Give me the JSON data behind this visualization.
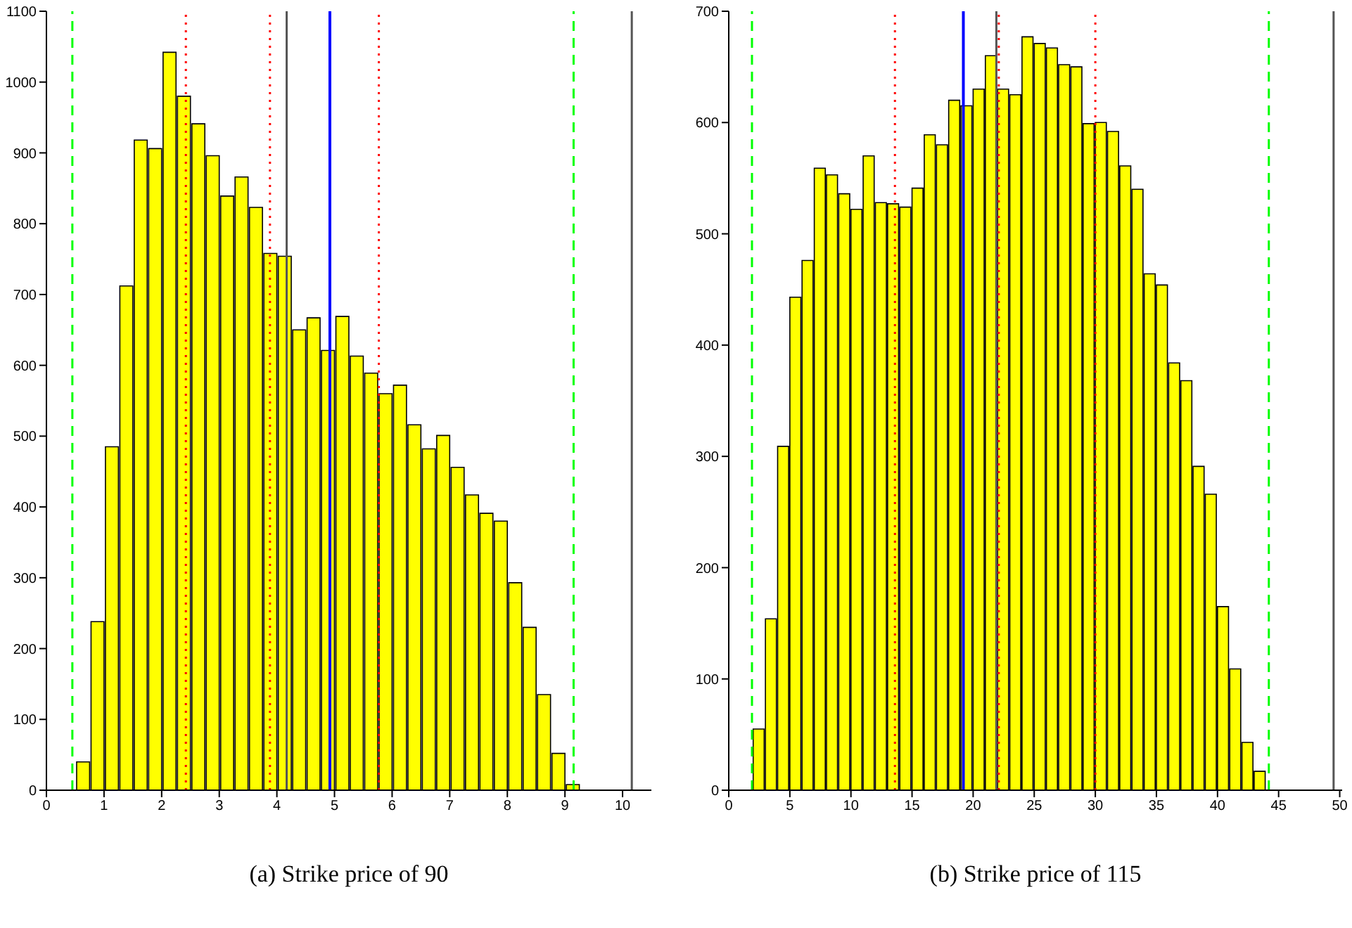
{
  "chart_data": [
    {
      "type": "histogram",
      "title": "(a) Strike price of 90",
      "color": "#ffff00",
      "bins": [
        0,
        0.25,
        0.5,
        0.75,
        1,
        1.25,
        1.5,
        1.75,
        2,
        2.25,
        2.5,
        2.75,
        3,
        3.25,
        3.5,
        3.75,
        4,
        4.25,
        4.5,
        4.75,
        5,
        5.25,
        5.5,
        5.75,
        6,
        6.25,
        6.5,
        6.75,
        7,
        7.25,
        7.5,
        7.75,
        8,
        8.25,
        8.5,
        8.75,
        9,
        9.25,
        9.5,
        9.75,
        10
      ],
      "values": [
        0,
        null,
        40,
        238,
        485,
        712,
        918,
        906,
        1042,
        980,
        941,
        896,
        839,
        866,
        823,
        758,
        754,
        650,
        667,
        621,
        669,
        613,
        589,
        560,
        572,
        516,
        482,
        501,
        456,
        417,
        391,
        380,
        293,
        230,
        135,
        52,
        8,
        0,
        0,
        0
      ],
      "xlim": [
        0,
        10.5
      ],
      "xticks": [
        0,
        1,
        2,
        3,
        4,
        5,
        6,
        7,
        8,
        9,
        10
      ],
      "ylim": [
        0,
        1100
      ],
      "yticks": [
        0,
        100,
        200,
        300,
        400,
        500,
        600,
        700,
        800,
        900,
        1000,
        1100
      ],
      "ref_lines": [
        {
          "axis": "x",
          "value": 0.45,
          "color": "#00ff00",
          "line_style": "dashed"
        },
        {
          "axis": "x",
          "value": 9.15,
          "color": "#00ff00",
          "line_style": "dashed"
        },
        {
          "axis": "x",
          "value": 2.42,
          "color": "#ff0000",
          "line_style": "dotted"
        },
        {
          "axis": "x",
          "value": 3.88,
          "color": "#ff0000",
          "line_style": "dotted"
        },
        {
          "axis": "x",
          "value": 5.77,
          "color": "#ff0000",
          "line_style": "dotted"
        },
        {
          "axis": "x",
          "value": 4.17,
          "color": "#555555",
          "line_style": "solid"
        },
        {
          "axis": "x",
          "value": 4.92,
          "color": "#0000ff",
          "line_style": "solid"
        },
        {
          "axis": "x",
          "value": 10.16,
          "color": "#555555",
          "line_style": "solid"
        }
      ],
      "grid": false,
      "legend": false
    },
    {
      "type": "histogram",
      "title": "(b) Strike price of 115",
      "color": "#ffff00",
      "bins": [
        0,
        1,
        2,
        3,
        4,
        5,
        6,
        7,
        8,
        9,
        10,
        11,
        12,
        13,
        14,
        15,
        16,
        17,
        18,
        19,
        20,
        21,
        22,
        23,
        24,
        25,
        26,
        27,
        28,
        29,
        30,
        31,
        32,
        33,
        34,
        35,
        36,
        37,
        38,
        39,
        40,
        41,
        42,
        43,
        44,
        45,
        46,
        47,
        48,
        49
      ],
      "values": [
        0,
        null,
        55,
        154,
        309,
        443,
        476,
        559,
        553,
        536,
        522,
        570,
        528,
        527,
        524,
        541,
        589,
        580,
        620,
        615,
        630,
        660,
        630,
        625,
        677,
        671,
        667,
        652,
        650,
        599,
        600,
        592,
        561,
        540,
        464,
        454,
        384,
        368,
        291,
        266,
        165,
        109,
        43,
        17,
        0,
        0,
        0,
        0,
        0
      ],
      "xlim": [
        0,
        50.2
      ],
      "xticks": [
        0,
        5,
        10,
        15,
        20,
        25,
        30,
        35,
        40,
        45,
        50
      ],
      "ylim": [
        0,
        700
      ],
      "yticks": [
        0,
        100,
        200,
        300,
        400,
        500,
        600,
        700
      ],
      "ref_lines": [
        {
          "axis": "x",
          "value": 1.9,
          "color": "#00ff00",
          "line_style": "dashed"
        },
        {
          "axis": "x",
          "value": 44.2,
          "color": "#00ff00",
          "line_style": "dashed"
        },
        {
          "axis": "x",
          "value": 13.6,
          "color": "#ff0000",
          "line_style": "dotted"
        },
        {
          "axis": "x",
          "value": 22.1,
          "color": "#ff0000",
          "line_style": "dotted"
        },
        {
          "axis": "x",
          "value": 30,
          "color": "#ff0000",
          "line_style": "dotted"
        },
        {
          "axis": "x",
          "value": 21.9,
          "color": "#555555",
          "line_style": "solid"
        },
        {
          "axis": "x",
          "value": 19.2,
          "color": "#0000ff",
          "line_style": "solid"
        },
        {
          "axis": "x",
          "value": 49.5,
          "color": "#555555",
          "line_style": "solid"
        }
      ],
      "grid": false,
      "legend": false
    }
  ]
}
